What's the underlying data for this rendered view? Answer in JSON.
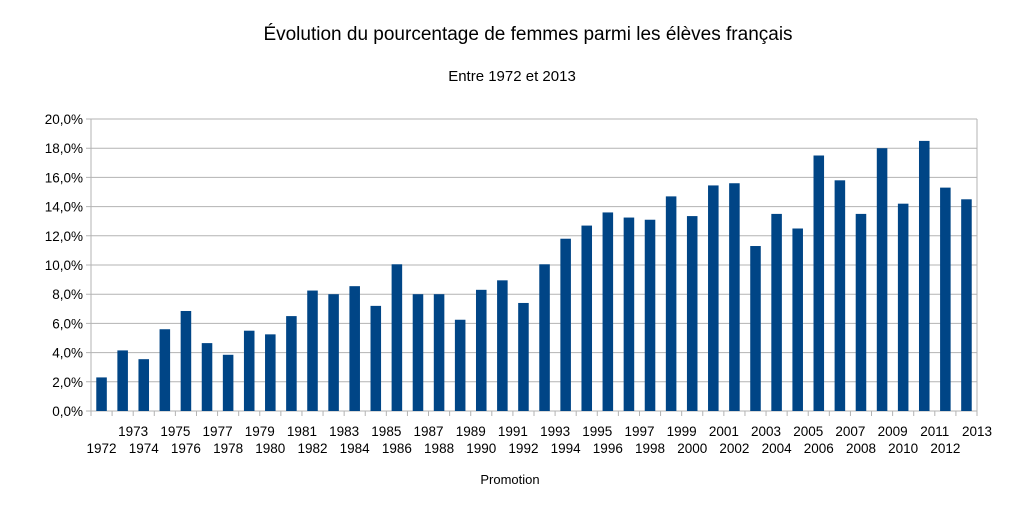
{
  "chart_data": {
    "type": "bar",
    "title": "Évolution du pourcentage de femmes parmi les élèves français",
    "subtitle": "Entre 1972 et 2013",
    "xlabel": "Promotion",
    "ylabel": "",
    "ylim": [
      0,
      20
    ],
    "yticks": [
      "0,0%",
      "2,0%",
      "4,0%",
      "6,0%",
      "8,0%",
      "10,0%",
      "12,0%",
      "14,0%",
      "16,0%",
      "18,0%",
      "20,0%"
    ],
    "grid": true,
    "legend": "none",
    "bar_color": "#004586",
    "categories": [
      "1972",
      "1973",
      "1974",
      "1975",
      "1976",
      "1977",
      "1978",
      "1979",
      "1980",
      "1981",
      "1982",
      "1983",
      "1984",
      "1985",
      "1986",
      "1987",
      "1988",
      "1989",
      "1990",
      "1991",
      "1992",
      "1993",
      "1994",
      "1995",
      "1996",
      "1997",
      "1998",
      "1999",
      "2000",
      "2001",
      "2002",
      "2003",
      "2004",
      "2005",
      "2006",
      "2007",
      "2008",
      "2009",
      "2010",
      "2011",
      "2012",
      "2013"
    ],
    "values": [
      2.3,
      4.15,
      3.55,
      5.6,
      6.85,
      4.65,
      3.85,
      5.5,
      5.25,
      6.5,
      8.25,
      8.0,
      8.55,
      7.2,
      10.05,
      8.0,
      8.0,
      6.25,
      8.3,
      8.95,
      7.4,
      10.05,
      11.8,
      12.7,
      13.6,
      13.25,
      13.1,
      14.7,
      13.35,
      15.45,
      15.6,
      11.3,
      13.5,
      12.5,
      17.5,
      15.8,
      13.5,
      18.0,
      14.2,
      18.5,
      15.3,
      14.5
    ]
  }
}
